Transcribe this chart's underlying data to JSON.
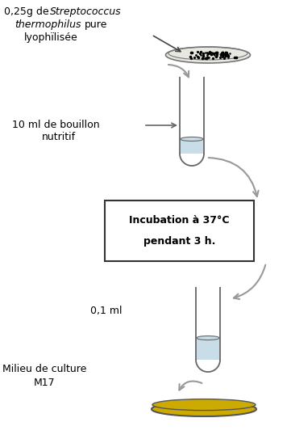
{
  "text1_normal": "0,25g de ",
  "text1_italic1": "Streptococcus",
  "text1_italic2": "thermophilus",
  "text1_normal2": "pure",
  "text1_line3": "lyophïlisée",
  "text2_line1": "10 ml de bouillon",
  "text2_line2": "nutritif",
  "text3": "0,1 ml",
  "text4_line1": "Milieu de culture",
  "text4_line2": "M17",
  "incubation_line1": "Incubation à 37°C",
  "incubation_line2": "pendant 3 h.",
  "background_color": "#ffffff",
  "tube_edge": "#666666",
  "liquid_color": "#c8dde8",
  "petri_fill": "#ccaa00",
  "petri_edge": "#555555",
  "plate_fill": "#e8e8e0",
  "plate_edge": "#777777",
  "arrow_color": "#999999",
  "box_edge": "#333333",
  "text_color": "#000000"
}
